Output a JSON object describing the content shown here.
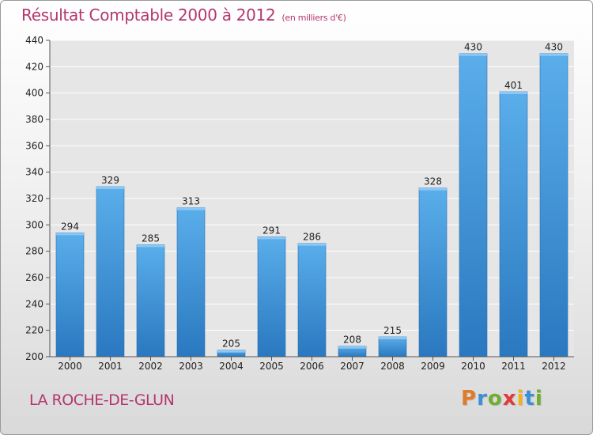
{
  "header": {
    "title": "Résultat Comptable 2000 à 2012",
    "unit": "(en milliers d'€)"
  },
  "footer": {
    "city": "LA ROCHE-DE-GLUN",
    "logo_letters": [
      "P",
      "r",
      "o",
      "x",
      "i",
      "t",
      "i"
    ],
    "logo_colors": [
      "#e07b2a",
      "#3a8fd8",
      "#6fae2f",
      "#e03a3a",
      "#f0b020",
      "#3a8fd8",
      "#6fae2f"
    ]
  },
  "chart_data": {
    "type": "bar",
    "title": "Résultat Comptable 2000 à 2012",
    "ylabel": "(en milliers d'€)",
    "categories": [
      "2000",
      "2001",
      "2002",
      "2003",
      "2004",
      "2005",
      "2006",
      "2007",
      "2008",
      "2009",
      "2010",
      "2011",
      "2012"
    ],
    "values": [
      294,
      329,
      285,
      313,
      205,
      291,
      286,
      208,
      215,
      328,
      430,
      401,
      430
    ],
    "ylim": [
      200,
      440
    ],
    "yticks": [
      200,
      220,
      240,
      260,
      280,
      300,
      320,
      340,
      360,
      380,
      400,
      420,
      440
    ],
    "grid": true,
    "bar_color": "#4a9ee0",
    "bar_color_dark": "#2c77bf"
  }
}
